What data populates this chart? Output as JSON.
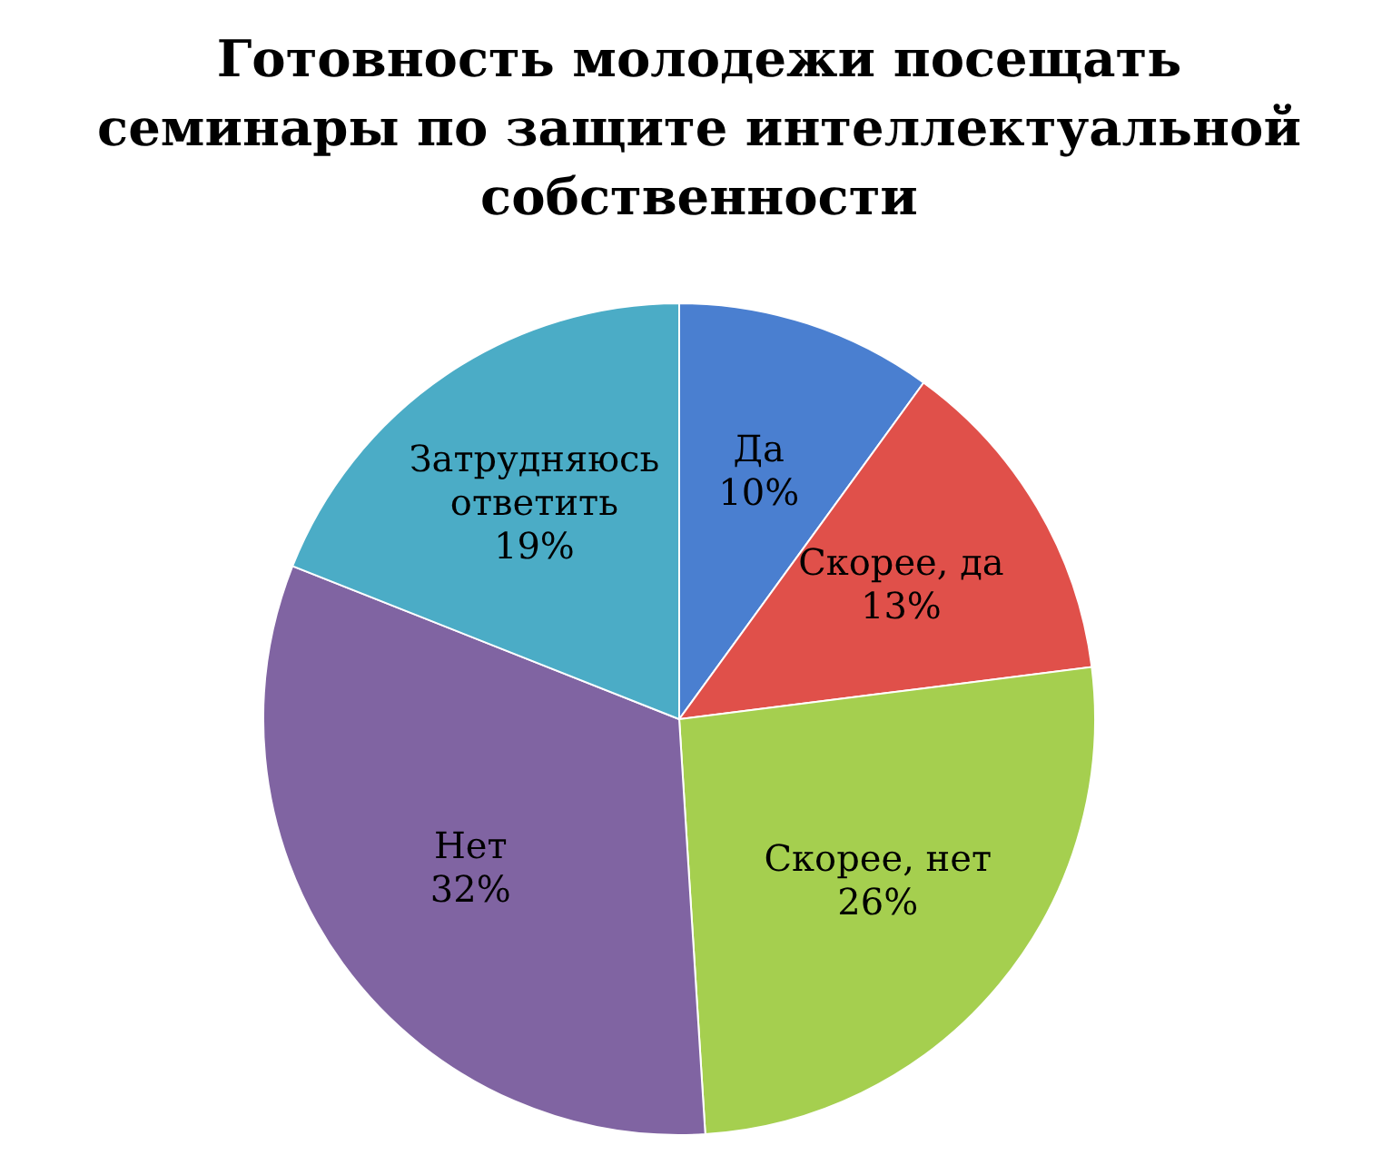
{
  "chart_data": {
    "type": "pie",
    "title": "Готовность молодежи посещать\nсеминары по защите интеллектуальной\nсобственности",
    "categories": [
      "Да",
      "Скорее, да",
      "Скорее, нет",
      "Нет",
      "Затрудняюсь ответить"
    ],
    "values": [
      10,
      13,
      26,
      32,
      19
    ],
    "value_labels": [
      "10%",
      "13%",
      "26%",
      "32%",
      "19%"
    ],
    "colors": [
      "#4a7fd0",
      "#e0504a",
      "#a5cf4f",
      "#8064a2",
      "#4bacc6"
    ]
  }
}
